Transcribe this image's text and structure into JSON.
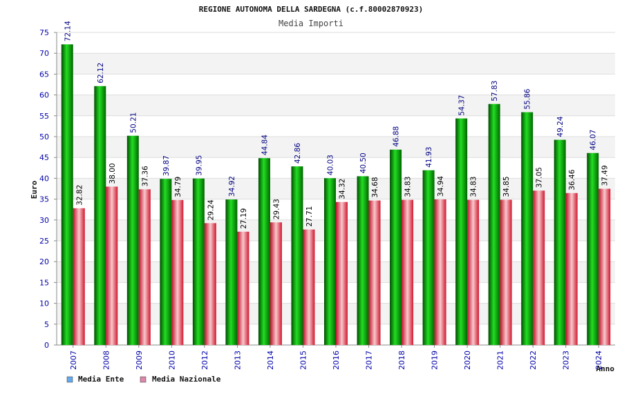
{
  "chart_data": {
    "type": "bar",
    "title": "REGIONE AUTONOMA DELLA SARDEGNA (c.f.80002870923)",
    "subtitle": "Media Importi",
    "xlabel": "Anno",
    "ylabel": "Euro",
    "ylim": [
      0,
      75
    ],
    "yticks": [
      "0",
      "5",
      "10",
      "15",
      "20",
      "25",
      "30",
      "35",
      "40",
      "45",
      "50",
      "55",
      "60",
      "65",
      "70",
      "75"
    ],
    "grid": true,
    "legend_position": "bottom-left",
    "categories": [
      "2007",
      "2008",
      "2009",
      "2010",
      "2012",
      "2013",
      "2014",
      "2015",
      "2016",
      "2017",
      "2018",
      "2019",
      "2020",
      "2021",
      "2022",
      "2023",
      "2024"
    ],
    "series": [
      {
        "name": "Media Ente",
        "values": [
          72.14,
          62.12,
          50.21,
          39.87,
          39.95,
          34.92,
          44.84,
          42.86,
          40.03,
          40.5,
          46.88,
          41.93,
          54.37,
          57.83,
          55.86,
          49.24,
          46.07
        ],
        "labels": [
          "72.14",
          "62.12",
          "50.21",
          "39.87",
          "39.95",
          "34.92",
          "44.84",
          "42.86",
          "40.03",
          "40.50",
          "46.88",
          "41.93",
          "54.37",
          "57.83",
          "55.86",
          "49.24",
          "46.07"
        ],
        "color": "#00b000",
        "legend_color": "#66aaee"
      },
      {
        "name": "Media Nazionale",
        "values": [
          32.82,
          38.0,
          37.36,
          34.79,
          29.24,
          27.19,
          29.43,
          27.71,
          34.32,
          34.68,
          34.83,
          34.94,
          34.83,
          34.85,
          37.05,
          36.46,
          37.49
        ],
        "labels": [
          "32.82",
          "38.00",
          "37.36",
          "34.79",
          "29.24",
          "27.19",
          "29.43",
          "27.71",
          "34.32",
          "34.68",
          "34.83",
          "34.94",
          "34.83",
          "34.85",
          "37.05",
          "36.46",
          "37.49"
        ],
        "color": "#e83040",
        "legend_color": "#dd88aa"
      }
    ]
  }
}
